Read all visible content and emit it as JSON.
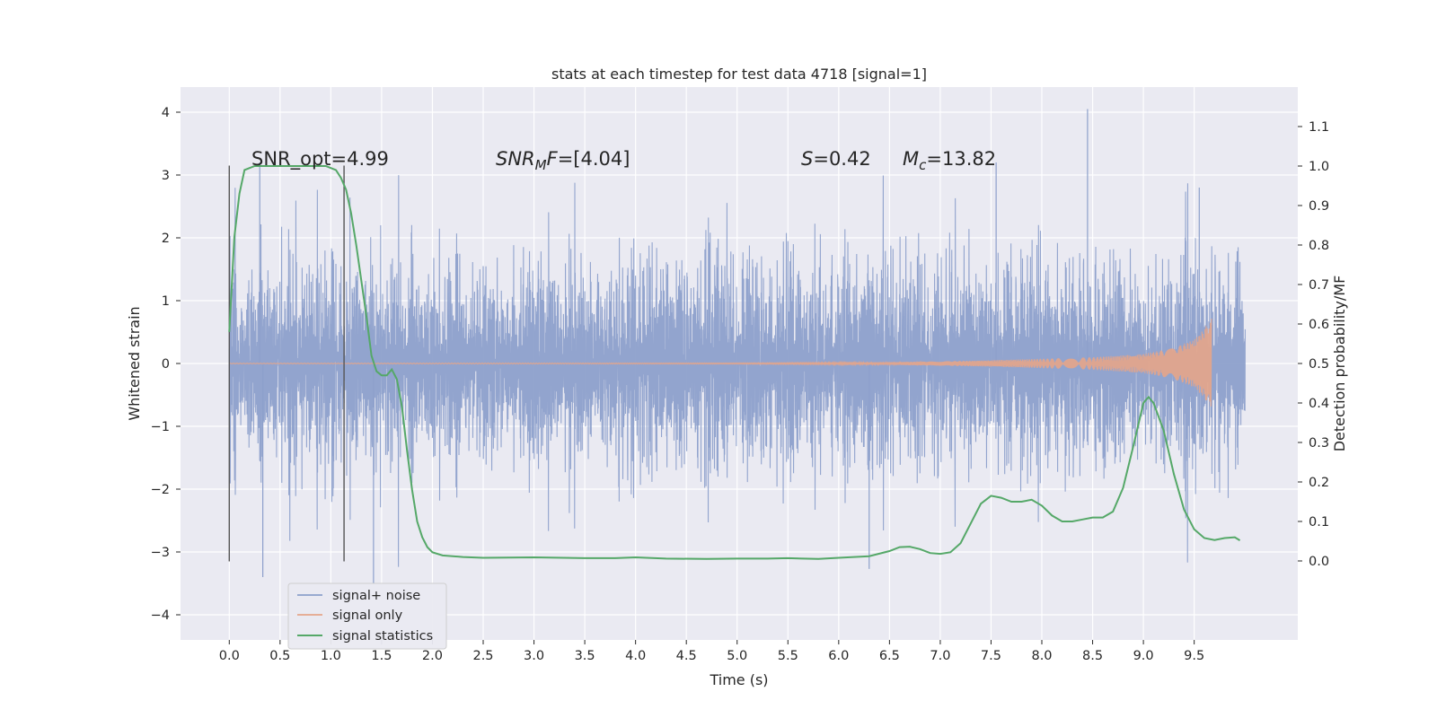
{
  "chart_data": {
    "type": "line",
    "title": "stats at each timestep for test data 4718 [signal=1]",
    "xlabel": "Time (s)",
    "ylabel_left": "Whitened strain",
    "ylabel_right": "Detection probability/MF",
    "xlim": [
      -0.48,
      10.52
    ],
    "ylim_left": [
      -4.4,
      4.4
    ],
    "ylim_right": [
      -0.2,
      1.2
    ],
    "xticks": [
      "0.0",
      "0.5",
      "1.0",
      "1.5",
      "2.0",
      "2.5",
      "3.0",
      "3.5",
      "4.0",
      "4.5",
      "5.0",
      "5.5",
      "6.0",
      "6.5",
      "7.0",
      "7.5",
      "8.0",
      "8.5",
      "9.0",
      "9.5"
    ],
    "yticks_left": [
      "4",
      "3",
      "2",
      "1",
      "0",
      "−1",
      "−2",
      "−3",
      "−4"
    ],
    "yticks_right": [
      "1.1",
      "1.0",
      "0.9",
      "0.8",
      "0.7",
      "0.6",
      "0.5",
      "0.4",
      "0.3",
      "0.2",
      "0.1",
      "0.0"
    ],
    "grid": true,
    "legend_position": "lower-left",
    "annotations": {
      "snr_opt": "SNR_opt=4.99",
      "snr_mf": "SNR_MF=[4.04]",
      "s": "S=0.42",
      "mc": "M_c=13.82"
    },
    "vertical_markers": [
      0.0,
      1.13
    ],
    "noise": {
      "name": "signal+ noise",
      "color": "#8da0cb",
      "t_start": 0.0,
      "t_end": 10.0,
      "approx_std": 0.95,
      "y_range": [
        -3.5,
        4.05
      ]
    },
    "signal": {
      "name": "signal only",
      "color": "#e5a58a",
      "t_start": 0.0,
      "t_end": 9.67,
      "peak_amplitude": 0.75,
      "envelope": [
        [
          0.0,
          0.005
        ],
        [
          5.0,
          0.01
        ],
        [
          6.5,
          0.02
        ],
        [
          7.5,
          0.05
        ],
        [
          8.5,
          0.1
        ],
        [
          9.0,
          0.15
        ],
        [
          9.3,
          0.25
        ],
        [
          9.5,
          0.38
        ],
        [
          9.6,
          0.55
        ],
        [
          9.67,
          0.75
        ]
      ]
    },
    "series": [
      {
        "name": "signal statistics",
        "color": "#55a868",
        "points": [
          [
            0.0,
            0.58
          ],
          [
            0.05,
            0.82
          ],
          [
            0.1,
            0.93
          ],
          [
            0.15,
            0.99
          ],
          [
            0.25,
            1.0
          ],
          [
            0.5,
            1.0
          ],
          [
            0.8,
            1.0
          ],
          [
            0.95,
            1.0
          ],
          [
            1.05,
            0.99
          ],
          [
            1.1,
            0.97
          ],
          [
            1.15,
            0.94
          ],
          [
            1.2,
            0.88
          ],
          [
            1.25,
            0.8
          ],
          [
            1.3,
            0.71
          ],
          [
            1.35,
            0.62
          ],
          [
            1.4,
            0.52
          ],
          [
            1.45,
            0.48
          ],
          [
            1.5,
            0.47
          ],
          [
            1.55,
            0.47
          ],
          [
            1.6,
            0.485
          ],
          [
            1.65,
            0.46
          ],
          [
            1.7,
            0.39
          ],
          [
            1.75,
            0.28
          ],
          [
            1.8,
            0.18
          ],
          [
            1.85,
            0.1
          ],
          [
            1.9,
            0.06
          ],
          [
            1.95,
            0.035
          ],
          [
            2.0,
            0.022
          ],
          [
            2.1,
            0.014
          ],
          [
            2.3,
            0.01
          ],
          [
            2.5,
            0.008
          ],
          [
            3.0,
            0.009
          ],
          [
            3.5,
            0.007
          ],
          [
            3.8,
            0.007
          ],
          [
            4.0,
            0.009
          ],
          [
            4.3,
            0.006
          ],
          [
            4.7,
            0.005
          ],
          [
            5.0,
            0.006
          ],
          [
            5.3,
            0.006
          ],
          [
            5.5,
            0.007
          ],
          [
            5.8,
            0.005
          ],
          [
            6.0,
            0.008
          ],
          [
            6.3,
            0.012
          ],
          [
            6.5,
            0.025
          ],
          [
            6.6,
            0.035
          ],
          [
            6.7,
            0.036
          ],
          [
            6.8,
            0.03
          ],
          [
            6.9,
            0.02
          ],
          [
            7.0,
            0.018
          ],
          [
            7.1,
            0.022
          ],
          [
            7.2,
            0.045
          ],
          [
            7.3,
            0.095
          ],
          [
            7.4,
            0.145
          ],
          [
            7.5,
            0.165
          ],
          [
            7.6,
            0.16
          ],
          [
            7.7,
            0.15
          ],
          [
            7.8,
            0.15
          ],
          [
            7.9,
            0.155
          ],
          [
            8.0,
            0.14
          ],
          [
            8.1,
            0.115
          ],
          [
            8.2,
            0.1
          ],
          [
            8.3,
            0.1
          ],
          [
            8.4,
            0.105
          ],
          [
            8.5,
            0.11
          ],
          [
            8.6,
            0.11
          ],
          [
            8.7,
            0.125
          ],
          [
            8.8,
            0.185
          ],
          [
            8.9,
            0.29
          ],
          [
            9.0,
            0.4
          ],
          [
            9.05,
            0.415
          ],
          [
            9.1,
            0.4
          ],
          [
            9.2,
            0.33
          ],
          [
            9.3,
            0.22
          ],
          [
            9.4,
            0.13
          ],
          [
            9.5,
            0.08
          ],
          [
            9.6,
            0.058
          ],
          [
            9.7,
            0.053
          ],
          [
            9.8,
            0.058
          ],
          [
            9.9,
            0.06
          ],
          [
            9.95,
            0.052
          ]
        ]
      }
    ]
  }
}
